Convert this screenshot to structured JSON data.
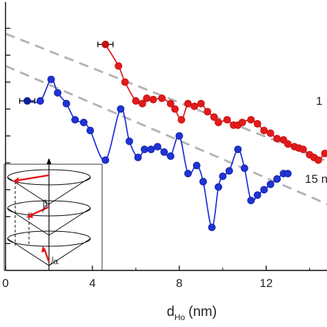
{
  "chart_data": {
    "type": "line",
    "title": "",
    "xlabel": "d",
    "xlabel_sub": "Ho",
    "xlabel_unit": "(nm)",
    "ylabel": "",
    "xlim": [
      0,
      14.8
    ],
    "ylim": [
      0,
      10
    ],
    "xticks": [
      0,
      4,
      8,
      12
    ],
    "x_tick_labels": [
      "0",
      "4",
      "8",
      "12"
    ],
    "yticks": [
      1,
      2,
      3,
      4,
      5,
      6,
      7,
      8,
      9
    ],
    "grid": false,
    "series": [
      {
        "name": "1",
        "color": "#e31a1c",
        "edge_color": "#c01010",
        "errorbar_at_first": true,
        "x": [
          4.6,
          5.2,
          5.5,
          6.0,
          6.3,
          6.5,
          6.8,
          7.2,
          7.6,
          7.8,
          8.1,
          8.4,
          8.7,
          9.0,
          9.3,
          9.6,
          9.8,
          10.2,
          10.5,
          10.7,
          10.9,
          11.3,
          11.6,
          11.9,
          12.2,
          12.5,
          12.8,
          13.0,
          13.3,
          13.5,
          13.7,
          14.0,
          14.2,
          14.4,
          14.7
        ],
        "y": [
          8.4,
          7.6,
          7.0,
          6.3,
          6.2,
          6.4,
          6.35,
          6.4,
          6.2,
          6.0,
          5.6,
          6.2,
          6.1,
          6.2,
          5.9,
          5.7,
          5.5,
          5.6,
          5.4,
          5.4,
          5.5,
          5.6,
          5.45,
          5.2,
          5.1,
          4.9,
          4.85,
          4.7,
          4.6,
          4.55,
          4.5,
          4.3,
          4.2,
          4.1,
          4.35
        ]
      },
      {
        "name": "15 n",
        "color": "#1f33d6",
        "edge_color": "#0e1f9a",
        "errorbar_at_first": true,
        "x": [
          1.0,
          1.6,
          2.1,
          2.4,
          2.8,
          3.2,
          3.6,
          3.9,
          4.6,
          5.3,
          5.7,
          6.1,
          6.4,
          6.7,
          7.0,
          7.3,
          7.6,
          8.0,
          8.4,
          8.8,
          9.1,
          9.5,
          9.8,
          10.0,
          10.3,
          10.7,
          11.0,
          11.3,
          11.6,
          11.9,
          12.2,
          12.5,
          12.8,
          13.0
        ],
        "y": [
          6.3,
          6.3,
          7.1,
          6.6,
          6.2,
          5.6,
          5.5,
          5.2,
          4.1,
          6.0,
          4.8,
          4.2,
          4.5,
          4.5,
          4.6,
          4.4,
          4.25,
          5.0,
          3.6,
          3.9,
          3.3,
          1.6,
          3.1,
          3.5,
          3.7,
          4.5,
          3.8,
          2.6,
          2.8,
          3.0,
          3.2,
          3.4,
          3.6,
          3.6
        ]
      }
    ],
    "reference_lines": [
      {
        "style": "dashed",
        "color": "#b3b3b3",
        "x": [
          0,
          15
        ],
        "y": [
          8.8,
          4.0
        ]
      },
      {
        "style": "dashed",
        "color": "#b3b3b3",
        "x": [
          0,
          15
        ],
        "y": [
          7.6,
          2.4
        ]
      }
    ]
  },
  "inset": {
    "labels": {
      "alpha": "α",
      "beta": "β"
    }
  }
}
